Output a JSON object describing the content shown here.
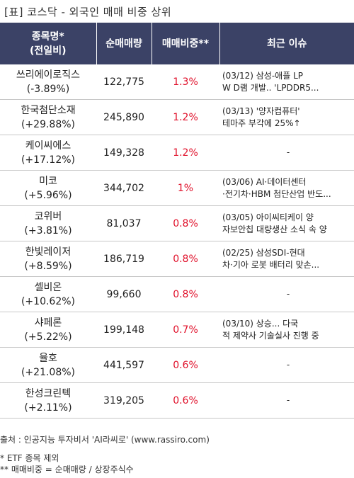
{
  "title": "[표] 코스닥 - 외국인 매매 비중 상위",
  "headers": {
    "name": "종목명*\n(전일비)",
    "volume": "순매매량",
    "ratio": "매매비중**",
    "issue": "최근 이슈"
  },
  "rows": [
    {
      "name": "쓰리에이로직스",
      "change": "(-3.89%)",
      "volume": "122,775",
      "ratio": "1.3%",
      "issue": "(03/12) 삼성-애플 LP\nW D램 개발.. 'LPDDR5..."
    },
    {
      "name": "한국첨단소재",
      "change": "(+29.88%)",
      "volume": "245,890",
      "ratio": "1.2%",
      "issue": "(03/13) '양자컴퓨터'\n테마주 부각에 25%↑"
    },
    {
      "name": "케이씨에스",
      "change": "(+17.12%)",
      "volume": "149,328",
      "ratio": "1.2%",
      "issue": "-"
    },
    {
      "name": "미코",
      "change": "(+5.96%)",
      "volume": "344,702",
      "ratio": "1%",
      "issue": "(03/06) AI·데이터센터\n·전기차·HBM 첨단산업 반도..."
    },
    {
      "name": "코위버",
      "change": "(+3.81%)",
      "volume": "81,037",
      "ratio": "0.8%",
      "issue": "(03/05) 아이씨티케이 양\n자보안칩 대량생산 소식 속 양"
    },
    {
      "name": "한빛레이저",
      "change": "(+8.59%)",
      "volume": "186,719",
      "ratio": "0.8%",
      "issue": "(02/25) 삼성SDI-현대\n차·기아 로봇 배터리 맞손..."
    },
    {
      "name": "셀비온",
      "change": "(+10.62%)",
      "volume": "99,660",
      "ratio": "0.8%",
      "issue": "-"
    },
    {
      "name": "샤페론",
      "change": "(+5.22%)",
      "volume": "199,148",
      "ratio": "0.7%",
      "issue": "(03/10) 상승... 다국\n적 제약사 기술실사 진행 중"
    },
    {
      "name": "율호",
      "change": "(+21.08%)",
      "volume": "441,597",
      "ratio": "0.6%",
      "issue": "-"
    },
    {
      "name": "한성크린텍",
      "change": "(+2.11%)",
      "volume": "319,205",
      "ratio": "0.6%",
      "issue": "-"
    }
  ],
  "footer": {
    "source": "출처 : 인공지능 투자비서 'AI라씨로' (www.rassiro.com)",
    "note1": "* ETF 종목 제외",
    "note2": "** 매매비중 = 순매매량 / 상장주식수"
  }
}
